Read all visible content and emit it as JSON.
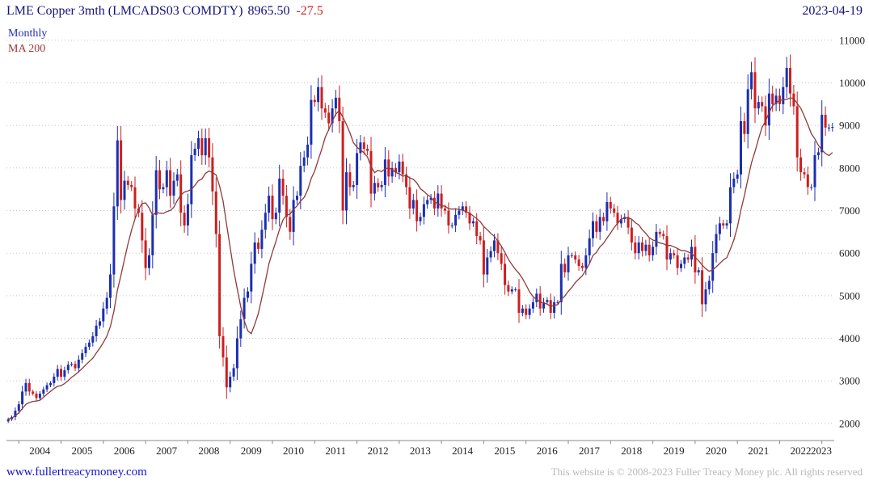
{
  "header": {
    "title": "LME Copper 3mth (LMCADS03 COMDTY)",
    "price": "8965.50",
    "change": "-27.5",
    "date": "2023-04-19"
  },
  "legend": {
    "series_label": "Monthly",
    "ma_label": "MA 200"
  },
  "footer": {
    "site_link": "www.fullertreacymoney.com",
    "copyright": "This website is © 2008-2023 Fuller Treacy Money plc. All rights reserved"
  },
  "chart_data": {
    "type": "candlestick",
    "title": "LME Copper 3mth (LMCADS03 COMDTY)",
    "frequency": "Monthly",
    "overlay": "MA 200",
    "ylim": [
      1600,
      11300
    ],
    "y_ticks": [
      2000,
      3000,
      4000,
      5000,
      6000,
      7000,
      8000,
      9000,
      10000,
      11000
    ],
    "x_tick_years": [
      2004,
      2005,
      2006,
      2007,
      2008,
      2009,
      2010,
      2011,
      2012,
      2013,
      2014,
      2015,
      2016,
      2017,
      2018,
      2019,
      2020,
      2021,
      2022,
      2023
    ],
    "start_month": "2003-10",
    "end_month": "2023-04",
    "first_open": 2050,
    "last_price": 8965.5,
    "ma_window_months": 10,
    "colors": {
      "up": "#1b2fb0",
      "down": "#cc1f1f",
      "ma": "#8e3a3a",
      "grid": "#c6c6c6",
      "axis": "#8a8a8a"
    },
    "monthly_closes": [
      2100,
      2150,
      2300,
      2450,
      2750,
      2950,
      2750,
      2700,
      2600,
      2700,
      2800,
      2900,
      2950,
      3100,
      3280,
      3100,
      3250,
      3380,
      3400,
      3300,
      3500,
      3650,
      3800,
      3900,
      4050,
      4300,
      4400,
      4700,
      4950,
      5500,
      7100,
      8650,
      7250,
      7700,
      7600,
      7550,
      7050,
      6950,
      6300,
      5650,
      5950,
      6900,
      7950,
      7500,
      7550,
      7950,
      7350,
      7700,
      7850,
      6950,
      6650,
      7150,
      8300,
      8450,
      8700,
      8300,
      8700,
      8250,
      7450,
      6450,
      4050,
      3550,
      2850,
      3100,
      3300,
      4000,
      4450,
      4950,
      5100,
      5750,
      6250,
      6100,
      6550,
      6950,
      7350,
      6800,
      6950,
      7750,
      7350,
      6850,
      6500,
      7250,
      7350,
      8050,
      8250,
      8550,
      9600,
      9550,
      9900,
      9400,
      9300,
      9050,
      9400,
      9650,
      9100,
      7000,
      7900,
      7550,
      7600,
      8350,
      8600,
      8450,
      8400,
      7400,
      7650,
      7550,
      7600,
      8200,
      7800,
      8000,
      7900,
      8150,
      7850,
      7550,
      7050,
      7250,
      6750,
      6850,
      7150,
      7250,
      7300,
      7050,
      7400,
      7050,
      7000,
      6650,
      6650,
      6900,
      7000,
      7100,
      6950,
      6700,
      6750,
      6400,
      6300,
      5500,
      5900,
      6050,
      6300,
      6000,
      5750,
      5250,
      5100,
      5150,
      5150,
      4600,
      4700,
      4550,
      4700,
      4850,
      5050,
      4700,
      4850,
      4900,
      4600,
      4850,
      4850,
      5750,
      5550,
      5950,
      5950,
      5850,
      5700,
      5650,
      5950,
      6350,
      6750,
      6500,
      6850,
      6750,
      7200,
      7050,
      6950,
      6700,
      6800,
      6850,
      6600,
      6250,
      6000,
      6250,
      6050,
      6200,
      5950,
      6150,
      6500,
      6450,
      6400,
      5850,
      6000,
      5950,
      5650,
      5750,
      5900,
      5850,
      6150,
      5550,
      5600,
      4800,
      5150,
      5350,
      6000,
      6450,
      6700,
      6650,
      6700,
      7550,
      7750,
      7850,
      9100,
      8800,
      9850,
      10250,
      9400,
      9550,
      9450,
      9000,
      9750,
      9500,
      9700,
      9500,
      9900,
      10350,
      9750,
      9450,
      8250,
      7900,
      7850,
      7550,
      7550,
      8300,
      8370,
      9250,
      8950,
      8950,
      8965.5
    ]
  }
}
